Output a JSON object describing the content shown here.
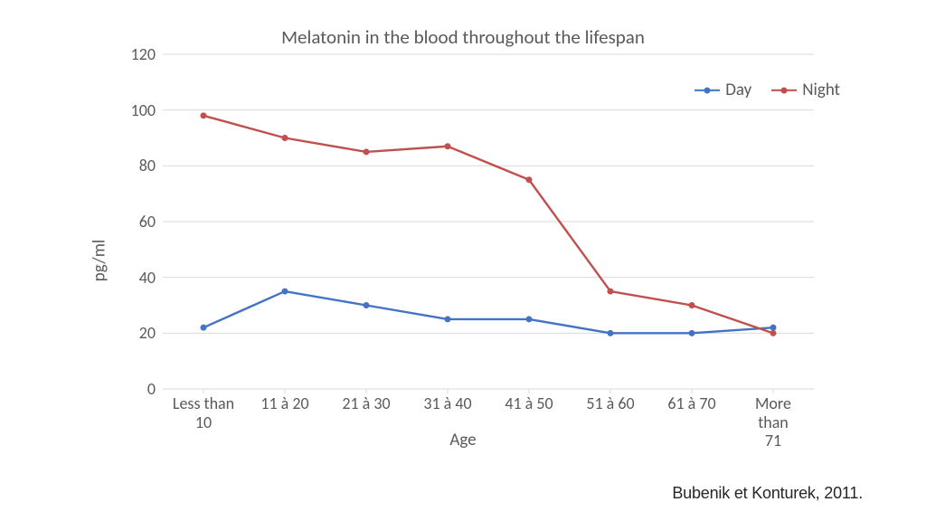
{
  "chart": {
    "type": "line",
    "title": "Melatonin in the blood throughout the lifespan",
    "ylabel": "pg/ml",
    "xlabel": "Age",
    "citation": "Bubenik et Konturek, 2011.",
    "background_color": "#ffffff",
    "grid_color": "#d9d9d9",
    "axis_color": "#d9d9d9",
    "text_color": "#595959",
    "title_fontsize": 21,
    "label_fontsize": 19,
    "tick_fontsize": 18,
    "ylim": [
      0,
      120
    ],
    "yticks": [
      0,
      20,
      40,
      60,
      80,
      100,
      120
    ],
    "categories": [
      "Less than\n10",
      "11 à 20",
      "21 à 30",
      "31 à 40",
      "41 à 50",
      "51 à 60",
      "61 à 70",
      "More than\n71"
    ],
    "line_width": 2.4,
    "marker_radius": 3.5,
    "series": [
      {
        "name": "Day",
        "color": "#4472c4",
        "values": [
          22,
          35,
          30,
          25,
          25,
          20,
          20,
          22
        ]
      },
      {
        "name": "Night",
        "color": "#c0504d",
        "values": [
          98,
          90,
          85,
          87,
          75,
          35,
          30,
          20
        ]
      }
    ],
    "legend_position": "top-right"
  }
}
